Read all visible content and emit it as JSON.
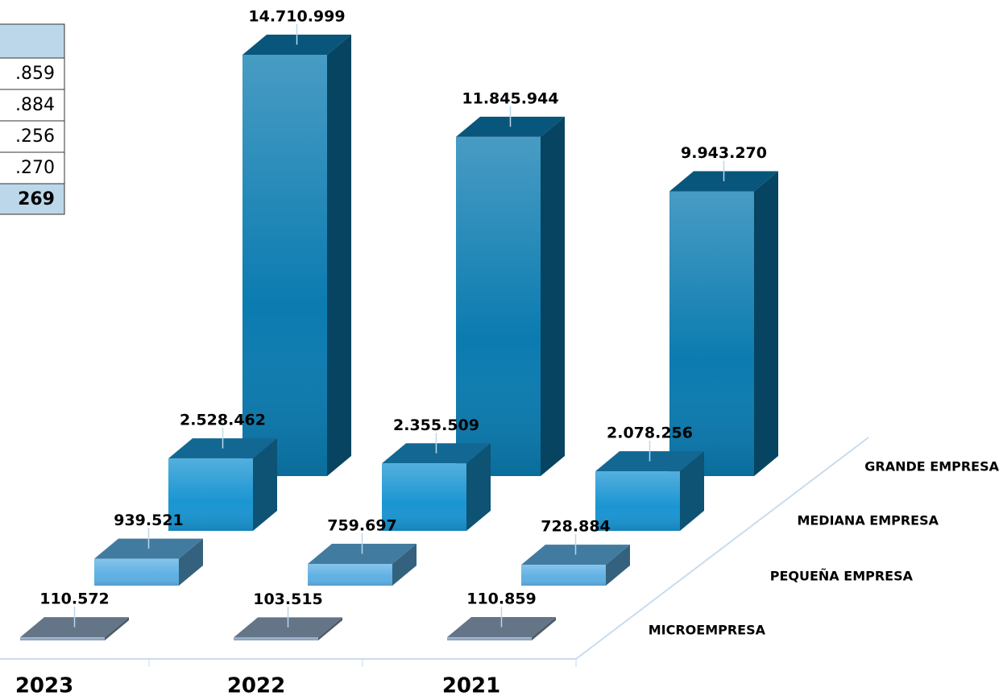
{
  "table": {
    "rows": [
      ".859",
      ".884",
      ".256",
      ".270"
    ],
    "total": "269"
  },
  "chart_data": {
    "type": "bar3d",
    "categories": [
      "2023",
      "2022",
      "2021"
    ],
    "series": [
      {
        "name": "MICROEMPRESA",
        "color": "#8ea7c1",
        "values": [
          110572,
          103515,
          110859
        ],
        "value_labels": [
          "110.572",
          "103.515",
          "110.859"
        ]
      },
      {
        "name": "PEQUEÑA EMPRESA",
        "color": "#5eb0e4",
        "values": [
          939521,
          759697,
          728884
        ],
        "value_labels": [
          "939.521",
          "759.697",
          "728.884"
        ]
      },
      {
        "name": "MEDIANA EMPRESA",
        "color": "#1a95d2",
        "values": [
          2528462,
          2355509,
          2078256
        ],
        "value_labels": [
          "2.528.462",
          "2.355.509",
          "2.078.256"
        ]
      },
      {
        "name": "GRANDE EMPRESA",
        "color": "#0b7bb0",
        "values": [
          14710999,
          11845944,
          9943270
        ],
        "value_labels": [
          "14.710.999",
          "11.845.944",
          "9.943.270"
        ]
      }
    ]
  }
}
